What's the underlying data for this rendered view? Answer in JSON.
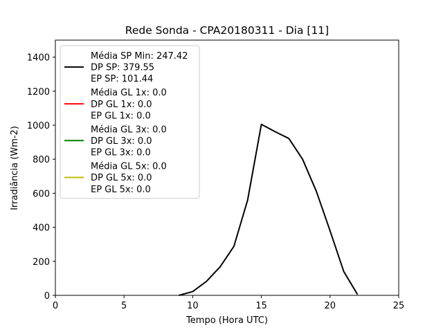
{
  "chart_data": {
    "type": "line",
    "title": "Rede Sonda - CPA20180311 - Dia [11]",
    "xlabel": "Tempo (Hora UTC)",
    "ylabel": "Irradiância (Wm-2)",
    "xlim": [
      0,
      25
    ],
    "ylim": [
      0,
      1500
    ],
    "xticks": [
      0,
      5,
      10,
      15,
      20,
      25
    ],
    "yticks": [
      0,
      200,
      400,
      600,
      800,
      1000,
      1200,
      1400
    ],
    "grid": false,
    "legend_position": "upper-left",
    "legend": [
      {
        "color": "#000000",
        "lines": [
          "Média SP Min: 247.42",
          "DP SP: 379.55",
          "EP SP: 101.44"
        ]
      },
      {
        "color": "#ff0000",
        "lines": [
          "Média GL 1x: 0.0",
          "DP GL 1x: 0.0",
          "EP GL 1x: 0.0"
        ]
      },
      {
        "color": "#008000",
        "lines": [
          "Média GL 3x: 0.0",
          "DP GL 3x: 0.0",
          "EP GL 3x: 0.0"
        ]
      },
      {
        "color": "#bfbf00",
        "lines": [
          "Média GL 5x: 0.0",
          "DP GL 5x: 0.0",
          "EP GL 5x: 0.0"
        ]
      }
    ],
    "series": [
      {
        "color": "#000000",
        "x": [
          9,
          10,
          11,
          12,
          13,
          14,
          15,
          16,
          17,
          18,
          19,
          20,
          21,
          22
        ],
        "y": [
          0,
          22,
          82,
          168,
          288,
          560,
          1005,
          962,
          922,
          800,
          612,
          380,
          140,
          5
        ]
      }
    ]
  }
}
